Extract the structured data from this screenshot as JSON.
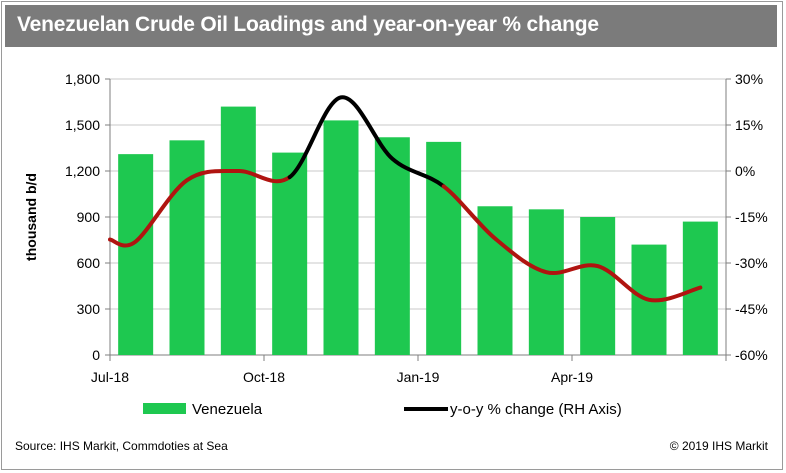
{
  "title": "Venezuelan Crude Oil Loadings and year-on-year % change",
  "source": "Source: IHS Markit, Commdoties at Sea",
  "copyright": "© 2019 IHS Markit",
  "colors": {
    "bar": "#1ec850",
    "line_red": "#b01410",
    "line_black": "#000000",
    "title_bg": "#7b7b7b"
  },
  "chart_data": {
    "type": "bar",
    "ylabel": "thousand b/d",
    "ylim": [
      0,
      1800
    ],
    "y2lim": [
      -60,
      30
    ],
    "yticks": [
      "0",
      "300",
      "600",
      "900",
      "1,200",
      "1,500",
      "1,800"
    ],
    "y2ticks": [
      "-60%",
      "-45%",
      "-30%",
      "-15%",
      "0%",
      "15%",
      "30%"
    ],
    "xtick_labels": [
      "Jul-18",
      "Oct-18",
      "Jan-19",
      "Apr-19"
    ],
    "categories": [
      "Jul-18",
      "Aug-18",
      "Sep-18",
      "Oct-18",
      "Nov-18",
      "Dec-18",
      "Jan-19",
      "Feb-19",
      "Mar-19",
      "Apr-19",
      "May-19",
      "Jun-19"
    ],
    "series": [
      {
        "name": "Venezuela",
        "type": "bar",
        "axis": "left",
        "values": [
          1310,
          1400,
          1620,
          1320,
          1530,
          1420,
          1390,
          970,
          950,
          900,
          720,
          870
        ]
      },
      {
        "name": "y-o-y % change (RH Axis)",
        "type": "line",
        "axis": "right",
        "values": [
          -23,
          -3,
          0,
          -2,
          24,
          4,
          -5,
          -22,
          -33,
          -31,
          -42,
          -38
        ]
      }
    ],
    "legend": [
      "Venezuela",
      "y-o-y % change (RH Axis)"
    ],
    "legend_position": "bottom",
    "grid": true
  }
}
